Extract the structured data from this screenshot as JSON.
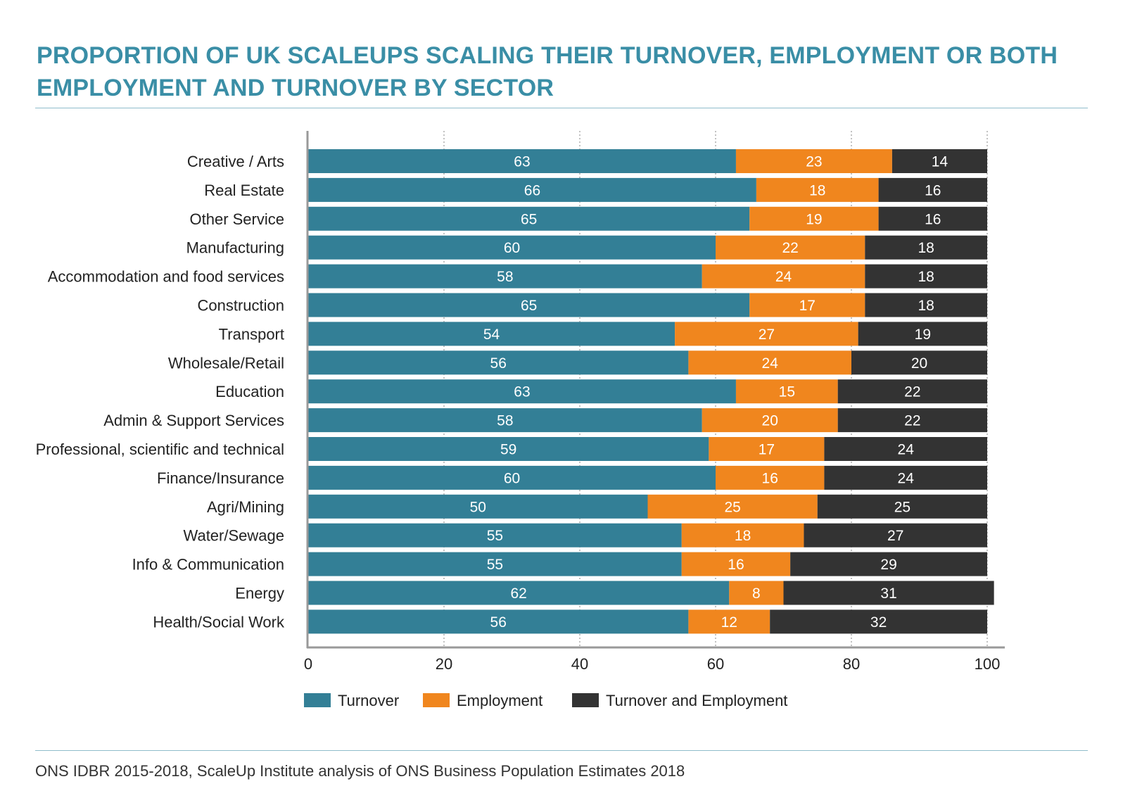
{
  "title": "PROPORTION OF UK SCALEUPS SCALING THEIR TURNOVER, EMPLOYMENT OR BOTH EMPLOYMENT AND TURNOVER BY SECTOR",
  "source": "ONS IDBR 2015-2018, ScaleUp Institute analysis of ONS Business Population Estimates 2018",
  "chart_data": {
    "type": "bar",
    "orientation": "horizontal",
    "stacked": true,
    "categories": [
      "Creative / Arts",
      "Real Estate",
      "Other Service",
      "Manufacturing",
      "Accommodation and food services",
      "Construction",
      "Transport",
      "Wholesale/Retail",
      "Education",
      "Admin & Support Services",
      "Professional, scientific and technical",
      "Finance/Insurance",
      "Agri/Mining",
      "Water/Sewage",
      "Info & Communication",
      "Energy",
      "Health/Social Work"
    ],
    "series": [
      {
        "name": "Turnover",
        "color": "#337f96",
        "values": [
          63,
          66,
          65,
          60,
          58,
          65,
          54,
          56,
          63,
          58,
          59,
          60,
          50,
          55,
          55,
          62,
          56
        ]
      },
      {
        "name": "Employment",
        "color": "#f0861e",
        "values": [
          23,
          18,
          19,
          22,
          24,
          17,
          27,
          24,
          15,
          20,
          17,
          16,
          25,
          18,
          16,
          8,
          12
        ]
      },
      {
        "name": "Turnover and Employment",
        "color": "#333333",
        "values": [
          14,
          16,
          16,
          18,
          18,
          18,
          19,
          20,
          22,
          22,
          24,
          24,
          25,
          27,
          29,
          31,
          32
        ]
      }
    ],
    "xlim": [
      0,
      100
    ],
    "xticks": [
      "0",
      "20",
      "40",
      "60",
      "80",
      "100"
    ],
    "grid": "vertical dotted",
    "legend_position": "bottom"
  }
}
